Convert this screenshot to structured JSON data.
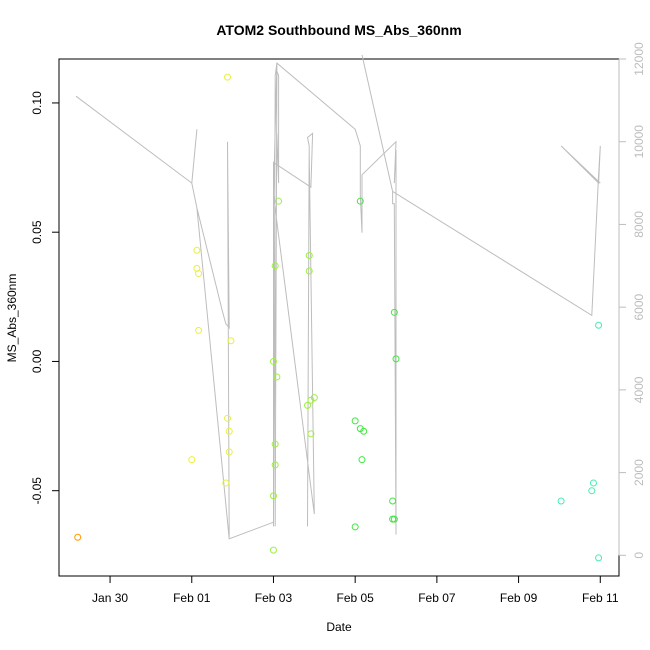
{
  "chart_data": {
    "type": "scatter",
    "title": "ATOM2 Southbound MS_Abs_360nm",
    "xlabel": "Date",
    "ylabel": "MS_Abs_360nm",
    "xlim": [
      "2025-01-28T18:00",
      "2025-02-11T11:00"
    ],
    "ylim": [
      -0.083,
      0.117
    ],
    "x_ticks": [
      {
        "date": "2025-01-30",
        "label": "Jan 30"
      },
      {
        "date": "2025-02-01",
        "label": "Feb 01"
      },
      {
        "date": "2025-02-03",
        "label": "Feb 03"
      },
      {
        "date": "2025-02-05",
        "label": "Feb 05"
      },
      {
        "date": "2025-02-07",
        "label": "Feb 07"
      },
      {
        "date": "2025-02-09",
        "label": "Feb 09"
      },
      {
        "date": "2025-02-11",
        "label": "Feb 11"
      }
    ],
    "y_ticks": [
      {
        "value": -0.05,
        "label": "-0.05"
      },
      {
        "value": 0.0,
        "label": "0.00"
      },
      {
        "value": 0.05,
        "label": "0.05"
      },
      {
        "value": 0.1,
        "label": "0.10"
      }
    ],
    "y2lim": [
      -500,
      12000
    ],
    "y2_ticks": [
      {
        "value": 0,
        "label": "0"
      },
      {
        "value": 2000,
        "label": "2000"
      },
      {
        "value": 4000,
        "label": "4000"
      },
      {
        "value": 6000,
        "label": "6000"
      },
      {
        "value": 8000,
        "label": "8000"
      },
      {
        "value": 10000,
        "label": "10000"
      },
      {
        "value": 12000,
        "label": "12000"
      }
    ],
    "points": [
      {
        "x": "2025-01-29T05:00",
        "y": -0.068,
        "color": "#ff9a00"
      },
      {
        "x": "2025-02-01T00:00",
        "y": -0.038,
        "color": "#e8f040"
      },
      {
        "x": "2025-02-01T03:00",
        "y": 0.043,
        "color": "#e8f040"
      },
      {
        "x": "2025-02-01T03:00",
        "y": 0.036,
        "color": "#e8f040"
      },
      {
        "x": "2025-02-01T04:00",
        "y": 0.034,
        "color": "#e8f040"
      },
      {
        "x": "2025-02-01T04:00",
        "y": 0.012,
        "color": "#e8f040"
      },
      {
        "x": "2025-02-01T20:00",
        "y": -0.047,
        "color": "#e8f040"
      },
      {
        "x": "2025-02-01T21:00",
        "y": 0.11,
        "color": "#e8f040"
      },
      {
        "x": "2025-02-01T21:00",
        "y": -0.022,
        "color": "#e8f040"
      },
      {
        "x": "2025-02-01T22:00",
        "y": -0.027,
        "color": "#e8f040"
      },
      {
        "x": "2025-02-01T22:00",
        "y": -0.035,
        "color": "#e8f040"
      },
      {
        "x": "2025-02-01T23:00",
        "y": 0.008,
        "color": "#e8f040"
      },
      {
        "x": "2025-02-03T00:00",
        "y": -0.073,
        "color": "#9cf040"
      },
      {
        "x": "2025-02-03T00:00",
        "y": -0.052,
        "color": "#9cf040"
      },
      {
        "x": "2025-02-03T01:00",
        "y": -0.04,
        "color": "#9cf040"
      },
      {
        "x": "2025-02-03T01:00",
        "y": -0.032,
        "color": "#9cf040"
      },
      {
        "x": "2025-02-03T01:00",
        "y": 0.037,
        "color": "#9cf040"
      },
      {
        "x": "2025-02-03T00:00",
        "y": 0.0,
        "color": "#9cf040"
      },
      {
        "x": "2025-02-03T02:00",
        "y": -0.006,
        "color": "#9cf040"
      },
      {
        "x": "2025-02-03T03:00",
        "y": 0.062,
        "color": "#9cf040"
      },
      {
        "x": "2025-02-03T20:00",
        "y": -0.017,
        "color": "#9cf040"
      },
      {
        "x": "2025-02-03T21:00",
        "y": 0.035,
        "color": "#9cf040"
      },
      {
        "x": "2025-02-03T21:00",
        "y": 0.041,
        "color": "#9cf040"
      },
      {
        "x": "2025-02-03T22:00",
        "y": -0.015,
        "color": "#9cf040"
      },
      {
        "x": "2025-02-03T22:00",
        "y": -0.028,
        "color": "#9cf040"
      },
      {
        "x": "2025-02-04T00:00",
        "y": -0.014,
        "color": "#9cf040"
      },
      {
        "x": "2025-02-05T00:00",
        "y": -0.064,
        "color": "#40e840"
      },
      {
        "x": "2025-02-05T00:00",
        "y": -0.023,
        "color": "#40e840"
      },
      {
        "x": "2025-02-05T03:00",
        "y": -0.026,
        "color": "#40e840"
      },
      {
        "x": "2025-02-05T03:00",
        "y": 0.062,
        "color": "#40e840"
      },
      {
        "x": "2025-02-05T04:00",
        "y": -0.038,
        "color": "#40e840"
      },
      {
        "x": "2025-02-05T05:00",
        "y": -0.027,
        "color": "#40e840"
      },
      {
        "x": "2025-02-05T22:00",
        "y": -0.054,
        "color": "#40e840"
      },
      {
        "x": "2025-02-05T22:00",
        "y": -0.061,
        "color": "#40e840"
      },
      {
        "x": "2025-02-05T23:00",
        "y": -0.061,
        "color": "#40e840"
      },
      {
        "x": "2025-02-05T23:00",
        "y": 0.019,
        "color": "#40e840"
      },
      {
        "x": "2025-02-06T00:00",
        "y": 0.001,
        "color": "#40e840"
      },
      {
        "x": "2025-02-10T01:00",
        "y": -0.054,
        "color": "#40f0b0"
      },
      {
        "x": "2025-02-10T19:00",
        "y": -0.05,
        "color": "#40f0b0"
      },
      {
        "x": "2025-02-10T20:00",
        "y": -0.047,
        "color": "#40f0b0"
      },
      {
        "x": "2025-02-10T23:00",
        "y": -0.076,
        "color": "#40f0b0"
      },
      {
        "x": "2025-02-10T23:00",
        "y": 0.014,
        "color": "#40f0b0"
      }
    ],
    "secondary_line": {
      "color": "#bdbdbd",
      "x": [
        "2025-01-29T04:00",
        "2025-02-01T00:00",
        "2025-02-01T03:00",
        "2025-02-01T00:00",
        "2025-02-01T03:00",
        "2025-02-01T18:00",
        "2025-02-01T20:00",
        "2025-02-01T22:00",
        "2025-02-01T21:00",
        "2025-02-01T22:00",
        "2025-02-01T03:00",
        "2025-02-01T22:00",
        "2025-02-03T00:00",
        "2025-02-03T01:00",
        "2025-02-03T01:00",
        "2025-02-03T02:00",
        "2025-02-03T01:00",
        "2025-02-03T02:00",
        "2025-02-03T03:00",
        "2025-02-03T03:00",
        "2025-02-03T02:00",
        "2025-02-03T00:00",
        "2025-02-03T00:00",
        "2025-02-03T22:00",
        "2025-02-03T23:00",
        "2025-02-03T20:00",
        "2025-02-03T21:00",
        "2025-02-03T20:00",
        "2025-02-03T21:00",
        "2025-02-04T00:00",
        "2025-02-03T00:00",
        "2025-02-03T02:00",
        "2025-02-03T02:00",
        "2025-02-05T00:00",
        "2025-02-05T03:00",
        "2025-02-05T03:00",
        "2025-02-05T04:00",
        "2025-02-05T04:00",
        "2025-02-06T00:00",
        "2025-02-05T23:00",
        "2025-02-06T00:00",
        "2025-02-06T00:00",
        "2025-02-05T23:00",
        "2025-02-05T22:00",
        "2025-02-05T22:00",
        "2025-02-05T04:00",
        "2025-02-05T22:00",
        "2025-02-10T19:00",
        "2025-02-10T23:00",
        "2025-02-11T00:00",
        "2025-02-10T23:00",
        "2025-02-10T01:00",
        "2025-02-11T00:00"
      ],
      "y": [
        11100,
        9000,
        10300,
        9000,
        8400,
        5900,
        5600,
        5500,
        10000,
        400,
        8400,
        400,
        800,
        11500,
        11600,
        11900,
        700,
        11700,
        11600,
        9000,
        10200,
        700,
        9500,
        8900,
        10200,
        10100,
        9900,
        700,
        9700,
        1000,
        8700,
        11900,
        11900,
        10300,
        9900,
        8700,
        7800,
        9200,
        10000,
        9000,
        9800,
        500,
        8500,
        8500,
        8800,
        12100,
        8800,
        5800,
        9200,
        9900,
        9000,
        9900,
        9000
      ]
    }
  }
}
